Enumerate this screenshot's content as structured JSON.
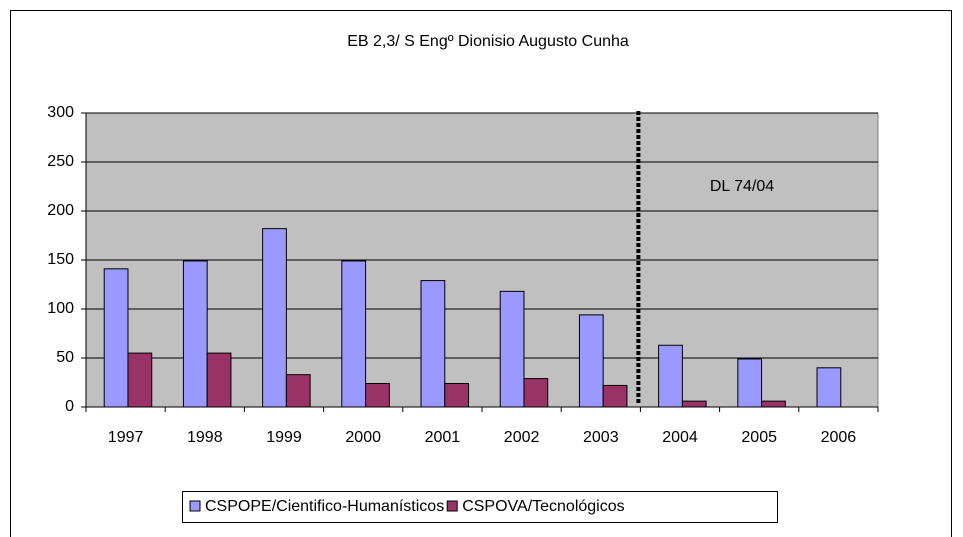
{
  "chart_data": {
    "type": "bar",
    "title": "EB 2,3/ S Engº Dionisio Augusto Cunha",
    "annotation": "DL 74/04",
    "categories": [
      "1997",
      "1998",
      "1999",
      "2000",
      "2001",
      "2002",
      "2003",
      "2004",
      "2005",
      "2006"
    ],
    "series": [
      {
        "name": "CSPOPE/Cientifico-Humanísticos",
        "color": "#9999ff",
        "values": [
          141,
          149,
          182,
          149,
          129,
          118,
          94,
          63,
          49,
          40
        ]
      },
      {
        "name": "CSPOVA/Tecnológicos",
        "color": "#993366",
        "values": [
          55,
          55,
          33,
          24,
          24,
          29,
          22,
          6,
          6,
          0
        ]
      }
    ],
    "ylim": [
      0,
      300
    ],
    "yticks": [
      0,
      50,
      100,
      150,
      200,
      250,
      300
    ],
    "grid": true,
    "legend": "bottom"
  }
}
